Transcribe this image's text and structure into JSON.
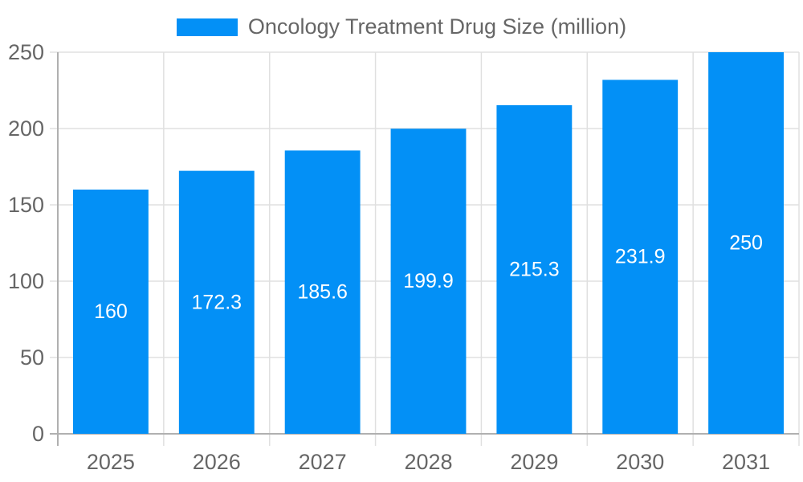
{
  "chart_data": {
    "type": "bar",
    "title": "Oncology Treatment Drug Size (million)",
    "categories": [
      "2025",
      "2026",
      "2027",
      "2028",
      "2029",
      "2030",
      "2031"
    ],
    "values": [
      160,
      172.3,
      185.6,
      199.9,
      215.3,
      231.9,
      250
    ],
    "value_labels": [
      "160",
      "172.3",
      "185.6",
      "199.9",
      "215.3",
      "231.9",
      "250"
    ],
    "xlabel": "",
    "ylabel": "",
    "ylim": [
      0,
      250
    ],
    "yticks": [
      0,
      50,
      100,
      150,
      200,
      250
    ],
    "ytick_labels": [
      "0",
      "50",
      "100",
      "150",
      "200",
      "250"
    ],
    "grid": true,
    "legend_position": "top",
    "colors": {
      "bar": "#0390f6",
      "value_label": "#ffffff",
      "axis_text": "#666666",
      "grid_line": "#e0e0e0",
      "axis_line": "#b0b0b0",
      "background": "#ffffff"
    }
  }
}
